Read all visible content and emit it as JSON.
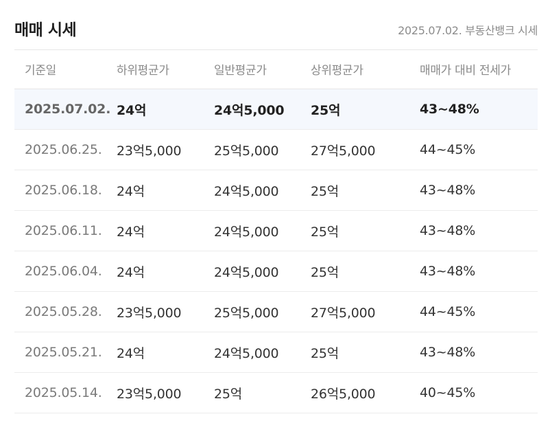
{
  "header": {
    "title": "매매 시세",
    "source": "2025.07.02. 부동산뱅크 시세"
  },
  "table": {
    "columns": [
      "기준일",
      "하위평균가",
      "일반평균가",
      "상위평균가",
      "매매가 대비 전세가"
    ],
    "rows": [
      {
        "date": "2025.07.02.",
        "low": "24억",
        "avg": "24억5,000",
        "high": "25억",
        "ratio": "43~48%"
      },
      {
        "date": "2025.06.25.",
        "low": "23억5,000",
        "avg": "25억5,000",
        "high": "27억5,000",
        "ratio": "44~45%"
      },
      {
        "date": "2025.06.18.",
        "low": "24억",
        "avg": "24억5,000",
        "high": "25억",
        "ratio": "43~48%"
      },
      {
        "date": "2025.06.11.",
        "low": "24억",
        "avg": "24억5,000",
        "high": "25억",
        "ratio": "43~48%"
      },
      {
        "date": "2025.06.04.",
        "low": "24억",
        "avg": "24억5,000",
        "high": "25억",
        "ratio": "43~48%"
      },
      {
        "date": "2025.05.28.",
        "low": "23억5,000",
        "avg": "25억5,000",
        "high": "27억5,000",
        "ratio": "44~45%"
      },
      {
        "date": "2025.05.21.",
        "low": "24억",
        "avg": "24억5,000",
        "high": "25억",
        "ratio": "43~48%"
      },
      {
        "date": "2025.05.14.",
        "low": "23억5,000",
        "avg": "25억",
        "high": "26억5,000",
        "ratio": "40~45%"
      }
    ]
  }
}
